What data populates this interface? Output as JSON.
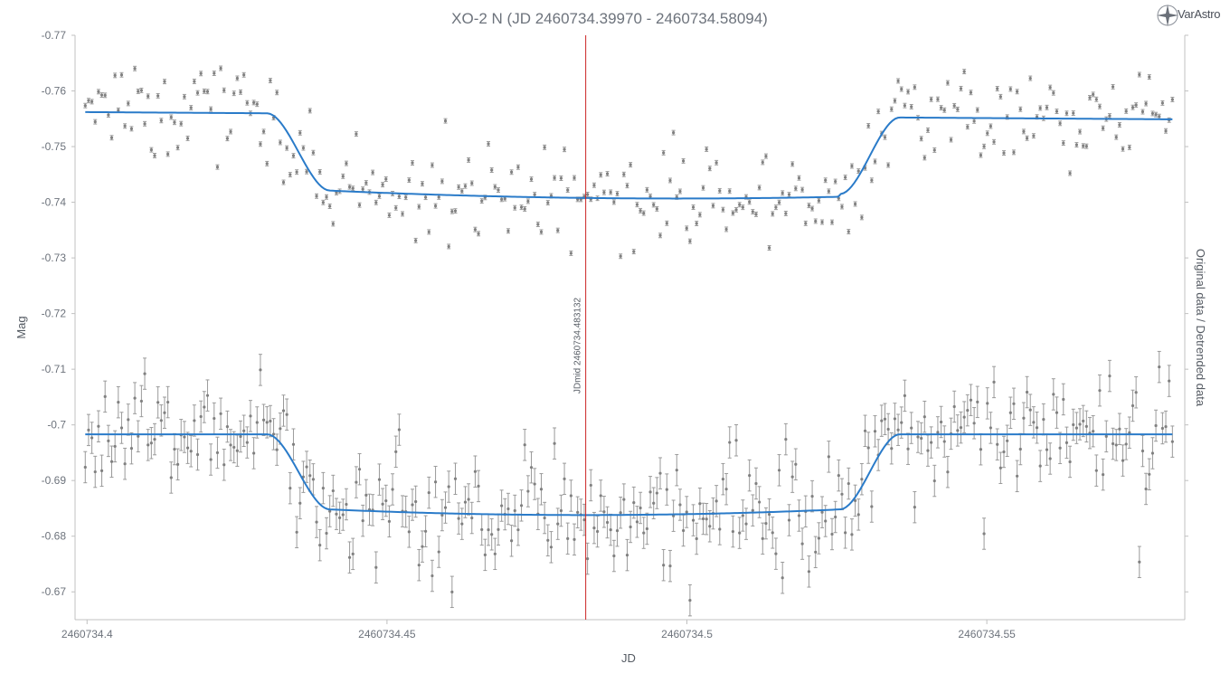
{
  "branding": {
    "logo_text": "VarAstro"
  },
  "chart_data": {
    "type": "scatter",
    "title": "XO-2 N (JD 2460734.39970 - 2460734.58094)",
    "xlabel": "JD",
    "ylabel": "Mag",
    "y2label": "Original data / Detrended data",
    "xlim": [
      2460734.398,
      2460734.583
    ],
    "ylim": [
      -0.665,
      -0.77
    ],
    "x_ticks": [
      2460734.4,
      2460734.45,
      2460734.5,
      2460734.55
    ],
    "x_tick_labels": [
      "2460734.4",
      "2460734.45",
      "2460734.5",
      "2460734.55"
    ],
    "y_ticks": [
      -0.77,
      -0.76,
      -0.75,
      -0.74,
      -0.73,
      -0.72,
      -0.71,
      -0.7,
      -0.69,
      -0.68,
      -0.67
    ],
    "y_tick_labels": [
      "-0.77",
      "-0.76",
      "-0.75",
      "-0.74",
      "-0.73",
      "-0.72",
      "-0.71",
      "-0.7",
      "-0.69",
      "-0.68",
      "-0.67"
    ],
    "grid": false,
    "jdmid_line": {
      "x": 2460734.483132,
      "label": "JDmid 2460734.483132",
      "color": "#cc2222"
    },
    "fit_color": "#2a7bc9",
    "point_color": "#808080",
    "series": [
      {
        "t1": 2460734.43,
        "t2": 2460734.4405,
        "t3": 2460734.5255,
        "t4": 2460734.5355,
        "oot_start": -0.7562,
        "oot_end": -0.7549,
        "center": -0.7407,
        "center_x": 2460734.49,
        "errorbar": 0.0004,
        "seed": 11,
        "scatter": 0.0042,
        "outlier_rate": 0.03
      },
      {
        "t1": 2460734.43,
        "t2": 2460734.4405,
        "t3": 2460734.5255,
        "t4": 2460734.5355,
        "oot_start": -0.6983,
        "oot_end": -0.6983,
        "center": -0.6838,
        "center_x": 2460734.483,
        "errorbar": 0.0028,
        "seed": 29,
        "scatter": 0.0042,
        "outlier_rate": 0.03
      }
    ],
    "n_points": 330,
    "x_start": 2460734.3997,
    "x_end": 2460734.58094
  }
}
